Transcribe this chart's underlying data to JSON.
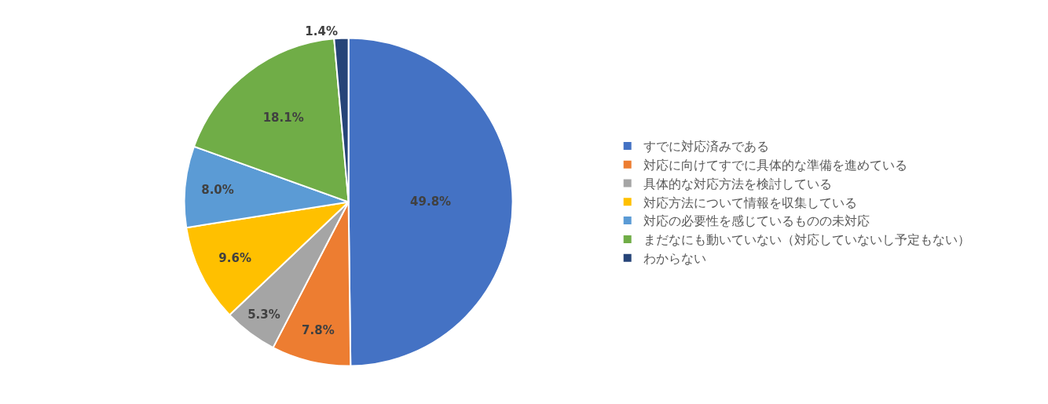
{
  "chart_data": {
    "type": "pie",
    "categories": [
      "すでに対応済みである",
      "対応に向けてすでに具体的な準備を進めている",
      "具体的な対応方法を検討している",
      "対応方法について情報を収集している",
      "対応の必要性を感じているものの未対応",
      "まだなにも動いていない（対応していないし予定もない）",
      "わからない"
    ],
    "values": [
      49.8,
      7.8,
      5.3,
      9.6,
      8.0,
      18.1,
      1.4
    ],
    "colors": [
      "#4472c4",
      "#ed7d31",
      "#a5a5a5",
      "#ffc000",
      "#5b9bd5",
      "#70ad47",
      "#264478"
    ],
    "value_labels": [
      "49.8%",
      "7.8%",
      "5.3%",
      "9.6%",
      "8.0%",
      "18.1%",
      "1.4%"
    ],
    "legend": "right"
  }
}
